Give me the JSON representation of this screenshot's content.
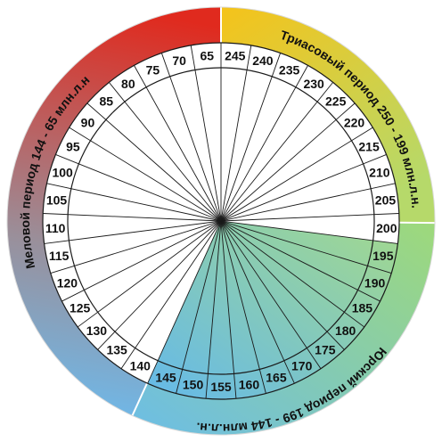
{
  "periods": {
    "triassic": {
      "label": "Триасовый период 250 - 199 млн.л.н.",
      "color_start": "#f5c31a",
      "color_end": "#b6d96a"
    },
    "jurassic": {
      "label": "Юрский период 199 - 144 млн.л.н.",
      "color_start": "#9ed97a",
      "color_end": "#6cbde6"
    },
    "cretaceous": {
      "label": "Меловой период 144 - 65 млн.л.н",
      "color_start": "#e02a1e",
      "color_end": "#6fb8e8"
    }
  },
  "ticks": [
    "245",
    "240",
    "235",
    "230",
    "225",
    "220",
    "215",
    "210",
    "205",
    "200",
    "195",
    "190",
    "185",
    "180",
    "175",
    "170",
    "165",
    "160",
    "155",
    "150",
    "145",
    "140",
    "135",
    "130",
    "125",
    "120",
    "115",
    "110",
    "105",
    "100",
    "95",
    "90",
    "85",
    "80",
    "75",
    "70",
    "65"
  ],
  "colors": {
    "ring_border": "#1a1a1a",
    "spoke": "#1a1a1a",
    "jurassic_wedge_start": "#a3d98d",
    "jurassic_wedge_end": "#64b9ea",
    "face": "#ffffff"
  }
}
